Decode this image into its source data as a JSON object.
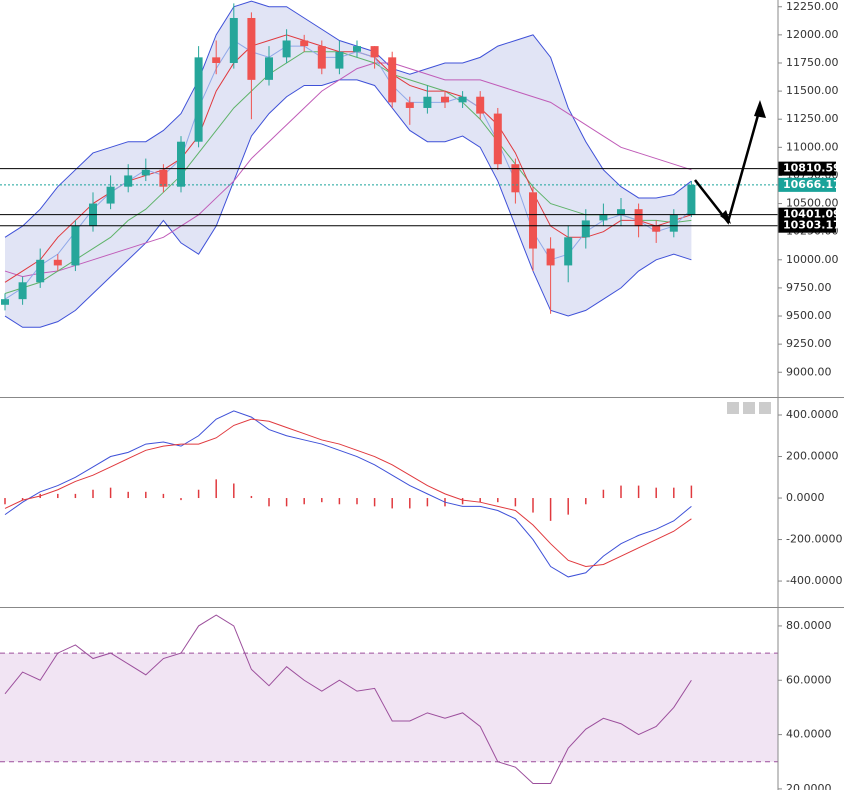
{
  "chart_data": [
    {
      "type": "candlestick",
      "ylim": [
        8780,
        12310
      ],
      "yticks": [
        {
          "value": 9000,
          "label": "9000.00"
        },
        {
          "value": 9250,
          "label": "9250.00"
        },
        {
          "value": 9500,
          "label": "9500.00"
        },
        {
          "value": 9750,
          "label": "9750.00"
        },
        {
          "value": 10000,
          "label": "10000.00"
        },
        {
          "value": 10250,
          "label": "10250.00"
        },
        {
          "value": 10500,
          "label": "10500.00"
        },
        {
          "value": 10750,
          "label": "10750.00"
        },
        {
          "value": 11000,
          "label": "11000.00"
        },
        {
          "value": 11250,
          "label": "11250.00"
        },
        {
          "value": 11500,
          "label": "11500.00"
        },
        {
          "value": 11750,
          "label": "11750.00"
        },
        {
          "value": 12000,
          "label": "12000.00"
        },
        {
          "value": 12250,
          "label": "12250.00"
        }
      ],
      "up_color": "#26a69a",
      "down_color": "#ef5350",
      "open": [
        9600,
        9650,
        9800,
        10000,
        9950,
        10300,
        10500,
        10650,
        10750,
        10800,
        10650,
        11050,
        11800,
        11750,
        12150,
        11600,
        11800,
        11950,
        11900,
        11700,
        11850,
        11900,
        11800,
        11400,
        11350,
        11450,
        11400,
        11450,
        11300,
        10850,
        10600,
        10100,
        9950,
        10200,
        10350,
        10400,
        10450,
        10300,
        10250,
        10401.09
      ],
      "high": [
        9700,
        9850,
        10100,
        10050,
        10350,
        10600,
        10750,
        10850,
        10900,
        10850,
        11100,
        11900,
        11950,
        12280,
        12200,
        11900,
        12050,
        12000,
        11950,
        11950,
        11950,
        11900,
        11850,
        11450,
        11550,
        11500,
        11500,
        11500,
        11350,
        10900,
        10650,
        10200,
        10300,
        10450,
        10500,
        10550,
        10500,
        10350,
        10450,
        10700
      ],
      "low": [
        9550,
        9600,
        9750,
        9900,
        9900,
        10250,
        10450,
        10600,
        10700,
        10600,
        10600,
        11000,
        11650,
        11700,
        11250,
        11550,
        11750,
        11850,
        11650,
        11650,
        11800,
        11700,
        11350,
        11200,
        11300,
        11350,
        11350,
        11250,
        10800,
        10500,
        9900,
        9520,
        9800,
        10100,
        10300,
        10300,
        10200,
        10150,
        10200,
        10380
      ],
      "close": [
        9650,
        9800,
        10000,
        9950,
        10300,
        10500,
        10650,
        10750,
        10800,
        10650,
        11050,
        11800,
        11750,
        12150,
        11600,
        11800,
        11950,
        11900,
        11700,
        11850,
        11900,
        11800,
        11400,
        11350,
        11450,
        11400,
        11450,
        11300,
        10850,
        10600,
        10100,
        9950,
        10200,
        10350,
        10400,
        10450,
        10300,
        10250,
        10400,
        10666.17
      ],
      "bands": {
        "color": "#3f51d8",
        "fill": "#dcdff3",
        "upper": [
          10200,
          10300,
          10450,
          10650,
          10800,
          10950,
          11000,
          11050,
          11050,
          11150,
          11300,
          11600,
          12000,
          12250,
          12300,
          12250,
          12250,
          12150,
          12050,
          11950,
          11900,
          11850,
          11700,
          11650,
          11700,
          11750,
          11750,
          11800,
          11900,
          11950,
          12000,
          11800,
          11350,
          11050,
          10800,
          10650,
          10550,
          10550,
          10580,
          10700
        ],
        "lower": [
          9500,
          9400,
          9400,
          9450,
          9550,
          9700,
          9850,
          10000,
          10150,
          10350,
          10150,
          10050,
          10300,
          10700,
          11100,
          11300,
          11450,
          11550,
          11550,
          11600,
          11600,
          11550,
          11350,
          11150,
          11050,
          11050,
          11100,
          11000,
          10700,
          10300,
          9900,
          9550,
          9500,
          9550,
          9650,
          9750,
          9900,
          10000,
          10050,
          10000
        ]
      },
      "series": [
        {
          "color": "#c05cb8",
          "values": [
            9900,
            9850,
            9880,
            9900,
            9950,
            10000,
            10050,
            10100,
            10150,
            10200,
            10300,
            10400,
            10550,
            10700,
            10900,
            11050,
            11200,
            11350,
            11500,
            11600,
            11700,
            11750,
            11750,
            11700,
            11650,
            11600,
            11600,
            11600,
            11550,
            11500,
            11450,
            11400,
            11300,
            11200,
            11100,
            11000,
            10950,
            10900,
            10850,
            10800
          ]
        },
        {
          "color": "#5fb36a",
          "values": [
            9700,
            9750,
            9800,
            9900,
            10000,
            10100,
            10200,
            10350,
            10450,
            10600,
            10750,
            10950,
            11150,
            11350,
            11500,
            11650,
            11750,
            11850,
            11850,
            11850,
            11800,
            11750,
            11650,
            11600,
            11550,
            11500,
            11400,
            11250,
            11050,
            10850,
            10650,
            10500,
            10450,
            10400,
            10400,
            10400,
            10350,
            10350,
            10330,
            10350
          ]
        },
        {
          "color": "#e0393e",
          "values": [
            9800,
            9900,
            10000,
            10200,
            10350,
            10500,
            10600,
            10700,
            10750,
            10800,
            10900,
            11100,
            11500,
            11750,
            11900,
            11950,
            12000,
            11950,
            11900,
            11850,
            11850,
            11800,
            11650,
            11550,
            11500,
            11500,
            11450,
            11350,
            11200,
            10950,
            10600,
            10300,
            10200,
            10200,
            10250,
            10350,
            10350,
            10300,
            10350,
            10400
          ]
        },
        {
          "color": "#8fa8e8",
          "values": [
            9650,
            9750,
            9950,
            10050,
            10250,
            10450,
            10600,
            10700,
            10800,
            10750,
            10900,
            11350,
            11700,
            11950,
            11850,
            11800,
            11900,
            11900,
            11800,
            11800,
            11850,
            11800,
            11550,
            11400,
            11400,
            11400,
            11450,
            11350,
            11050,
            10700,
            10250,
            10000,
            10050,
            10250,
            10350,
            10400,
            10350,
            10250,
            10300,
            10450
          ]
        }
      ],
      "price_lines": [
        {
          "value": 10810.59,
          "color": "#000000"
        },
        {
          "value": 10666.17,
          "color": "#1aa39a"
        },
        {
          "value": 10401.09,
          "color": "#000000"
        },
        {
          "value": 10303.17,
          "color": "#000000"
        }
      ]
    },
    {
      "type": "line",
      "ylim": [
        -525,
        482
      ],
      "yticks": [
        {
          "value": -400,
          "label": "-400.0000"
        },
        {
          "value": -200,
          "label": "-200.0000"
        },
        {
          "value": 0,
          "label": "0.0000"
        },
        {
          "value": 200,
          "label": "200.0000"
        },
        {
          "value": 400,
          "label": "400.0000"
        }
      ],
      "series": [
        {
          "color": "#3f51d8",
          "values": [
            -80,
            -20,
            30,
            60,
            100,
            150,
            200,
            220,
            260,
            270,
            250,
            300,
            380,
            420,
            390,
            330,
            300,
            280,
            260,
            230,
            200,
            160,
            110,
            60,
            20,
            -20,
            -40,
            -40,
            -60,
            -100,
            -200,
            -330,
            -380,
            -360,
            -280,
            -220,
            -180,
            -150,
            -110,
            -40
          ]
        },
        {
          "color": "#e0393e",
          "values": [
            -50,
            -10,
            10,
            40,
            80,
            110,
            150,
            190,
            230,
            250,
            260,
            260,
            290,
            350,
            380,
            370,
            340,
            310,
            280,
            260,
            230,
            200,
            160,
            110,
            60,
            20,
            -10,
            -20,
            -40,
            -60,
            -130,
            -220,
            -300,
            -330,
            -320,
            -280,
            -240,
            -200,
            -160,
            -100
          ]
        }
      ],
      "histogram": {
        "color": "#e0393e",
        "values": [
          -30,
          -10,
          20,
          20,
          20,
          40,
          50,
          30,
          30,
          20,
          -10,
          40,
          90,
          70,
          10,
          -40,
          -40,
          -30,
          -20,
          -30,
          -30,
          -40,
          -50,
          -50,
          -40,
          -40,
          -30,
          -20,
          -20,
          -40,
          -70,
          -110,
          -80,
          -30,
          40,
          60,
          60,
          50,
          50,
          60
        ]
      }
    },
    {
      "type": "line",
      "ylim": [
        19.6,
        86.6
      ],
      "yticks": [
        {
          "value": 20,
          "label": "20.0000"
        },
        {
          "value": 40,
          "label": "40.0000"
        },
        {
          "value": 60,
          "label": "60.0000"
        },
        {
          "value": 80,
          "label": "80.0000"
        }
      ],
      "levels": [
        70,
        30
      ],
      "band_fill": "#f1e4f3",
      "level_color": "#9c4f9c",
      "series": [
        {
          "color": "#9c4f9c",
          "values": [
            55,
            63,
            60,
            70,
            73,
            68,
            70,
            66,
            62,
            68,
            70,
            80,
            84,
            80,
            64,
            58,
            65,
            60,
            56,
            60,
            56,
            57,
            45,
            45,
            48,
            46,
            48,
            43,
            30,
            28,
            22,
            22,
            35,
            42,
            46,
            44,
            40,
            43,
            50,
            60
          ]
        }
      ]
    }
  ]
}
